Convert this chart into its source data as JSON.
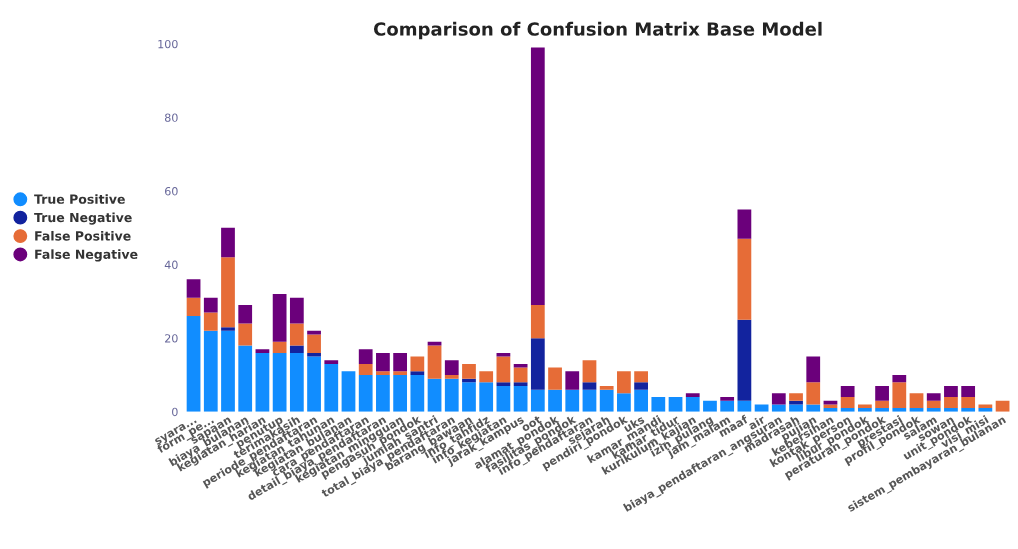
{
  "chart_data": {
    "type": "bar",
    "stacked": true,
    "title": "Comparison of Confusion Matrix Base Model",
    "categories": [
      "syara...",
      "form_pe...",
      "sapaan",
      "biaya_bulanan",
      "kegiatan_harian",
      "penutup",
      "terimakasih",
      "periode_pendaftaran",
      "kegiatan_tahunan",
      "kegiatan_bulanan",
      "cara_pendaftaran",
      "detail_biaya_pendaftaran",
      "kegiatan_mingguan",
      "pengasuh_pondok",
      "jumlah_santri",
      "total_biaya_pendaftaran",
      "barang_bawaan",
      "info_tahfidz",
      "info_kegiatan",
      "jarak_kampus",
      "oot",
      "alamat_pondok",
      "fasilitas_pondok",
      "info_pendaftaran",
      "sejarah",
      "pendiri_pondok",
      "uks",
      "kamar_mandi",
      "kamar_tidur",
      "kurikulum_kajian",
      "izin_pulang",
      "jam_malam",
      "maaf",
      "air",
      "biaya_pendaftaran_angsuran",
      "madrasah",
      "pujian",
      "kebersihan",
      "kontak_person",
      "libur_pondok",
      "peraturan_pondok",
      "prestasi",
      "profil_pondok",
      "salam",
      "sowan",
      "unit_pondok",
      "visi_misi",
      "sistem_pembayaran_bulanan"
    ],
    "series": [
      {
        "name": "True Positive",
        "color": "#118dff",
        "values": [
          26,
          22,
          22,
          18,
          16,
          16,
          16,
          15,
          13,
          11,
          10,
          10,
          10,
          10,
          9,
          9,
          8,
          8,
          7,
          7,
          6,
          6,
          6,
          6,
          6,
          5,
          6,
          4,
          4,
          4,
          3,
          3,
          3,
          2,
          2,
          2,
          2,
          1,
          1,
          1,
          1,
          1,
          1,
          1,
          1,
          1,
          1,
          0
        ]
      },
      {
        "name": "True Negative",
        "color": "#12239e",
        "values": [
          0,
          0,
          1,
          0,
          0,
          0,
          2,
          1,
          0,
          0,
          0,
          0,
          0,
          1,
          0,
          0,
          1,
          0,
          1,
          1,
          14,
          0,
          0,
          2,
          0,
          0,
          2,
          0,
          0,
          0,
          0,
          0,
          22,
          0,
          0,
          1,
          0,
          0,
          0,
          0,
          0,
          0,
          0,
          0,
          0,
          0,
          0,
          0
        ]
      },
      {
        "name": "False Positive",
        "color": "#e66c37",
        "values": [
          5,
          5,
          19,
          6,
          0,
          3,
          6,
          5,
          0,
          0,
          3,
          1,
          1,
          4,
          9,
          1,
          4,
          3,
          7,
          4,
          9,
          6,
          0,
          6,
          1,
          6,
          3,
          0,
          0,
          0,
          0,
          0,
          22,
          0,
          0,
          2,
          6,
          1,
          3,
          1,
          2,
          7,
          4,
          2,
          3,
          3,
          1,
          3
        ]
      },
      {
        "name": "False Negative",
        "color": "#6b007b",
        "values": [
          5,
          4,
          8,
          5,
          1,
          13,
          7,
          1,
          1,
          0,
          4,
          5,
          5,
          0,
          1,
          4,
          0,
          0,
          1,
          1,
          70,
          0,
          5,
          0,
          0,
          0,
          0,
          0,
          0,
          1,
          0,
          1,
          8,
          0,
          3,
          0,
          7,
          1,
          3,
          0,
          4,
          2,
          0,
          2,
          3,
          3,
          0,
          0
        ]
      }
    ],
    "ylim": [
      0,
      100
    ],
    "yticks": [
      0,
      20,
      40,
      60,
      80,
      100
    ],
    "grid": false,
    "legend": "left",
    "marker": "circle"
  }
}
